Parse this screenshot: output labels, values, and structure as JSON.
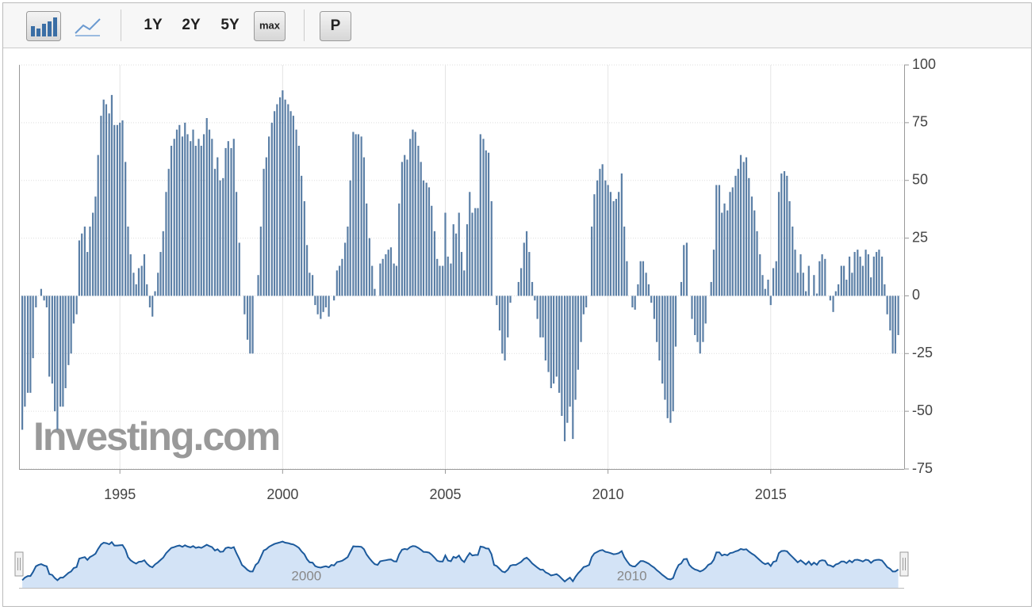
{
  "toolbar": {
    "buttons": [
      "1Y",
      "2Y",
      "5Y",
      "max",
      "P"
    ]
  },
  "chart_data": {
    "type": "bar",
    "color": "#5b7fa6",
    "xlim": [
      1991.9,
      2019.1
    ],
    "xticks": [
      1995,
      2000,
      2005,
      2010,
      2015
    ],
    "ylim": [
      -75,
      100
    ],
    "yticks": [
      -75,
      -50,
      -25,
      0,
      25,
      50,
      75,
      100
    ],
    "grid": true,
    "watermark": "Investing.com",
    "navigator": {
      "xticks": [
        2000,
        2010
      ],
      "color": "#1c5a9c"
    },
    "x": [
      1992,
      1992.08,
      1992.17,
      1992.25,
      1992.33,
      1992.42,
      1992.5,
      1992.58,
      1992.67,
      1992.75,
      1992.83,
      1992.92,
      1993,
      1993.08,
      1993.17,
      1993.25,
      1993.33,
      1993.42,
      1993.5,
      1993.58,
      1993.67,
      1993.75,
      1993.83,
      1993.92,
      1994,
      1994.08,
      1994.17,
      1994.25,
      1994.33,
      1994.42,
      1994.5,
      1994.58,
      1994.67,
      1994.75,
      1994.83,
      1994.92,
      1995,
      1995.08,
      1995.17,
      1995.25,
      1995.33,
      1995.42,
      1995.5,
      1995.58,
      1995.67,
      1995.75,
      1995.83,
      1995.92,
      1996,
      1996.08,
      1996.17,
      1996.25,
      1996.33,
      1996.42,
      1996.5,
      1996.58,
      1996.67,
      1996.75,
      1996.83,
      1996.92,
      1997,
      1997.08,
      1997.17,
      1997.25,
      1997.33,
      1997.42,
      1997.5,
      1997.58,
      1997.67,
      1997.75,
      1997.83,
      1997.92,
      1998,
      1998.08,
      1998.17,
      1998.25,
      1998.33,
      1998.42,
      1998.5,
      1998.58,
      1998.67,
      1998.75,
      1998.83,
      1998.92,
      1999,
      1999.08,
      1999.17,
      1999.25,
      1999.33,
      1999.42,
      1999.5,
      1999.58,
      1999.67,
      1999.75,
      1999.83,
      1999.92,
      2000,
      2000.08,
      2000.17,
      2000.25,
      2000.33,
      2000.42,
      2000.5,
      2000.58,
      2000.67,
      2000.75,
      2000.83,
      2000.92,
      2001,
      2001.08,
      2001.17,
      2001.25,
      2001.33,
      2001.42,
      2001.5,
      2001.58,
      2001.67,
      2001.75,
      2001.83,
      2001.92,
      2002,
      2002.08,
      2002.17,
      2002.25,
      2002.33,
      2002.42,
      2002.5,
      2002.58,
      2002.67,
      2002.75,
      2002.83,
      2002.92,
      2003,
      2003.08,
      2003.17,
      2003.25,
      2003.33,
      2003.42,
      2003.5,
      2003.58,
      2003.67,
      2003.75,
      2003.83,
      2003.92,
      2004,
      2004.08,
      2004.17,
      2004.25,
      2004.33,
      2004.42,
      2004.5,
      2004.58,
      2004.67,
      2004.75,
      2004.83,
      2004.92,
      2005,
      2005.08,
      2005.17,
      2005.25,
      2005.33,
      2005.42,
      2005.5,
      2005.58,
      2005.67,
      2005.75,
      2005.83,
      2005.92,
      2006,
      2006.08,
      2006.17,
      2006.25,
      2006.33,
      2006.42,
      2006.5,
      2006.58,
      2006.67,
      2006.75,
      2006.83,
      2006.92,
      2007,
      2007.08,
      2007.17,
      2007.25,
      2007.33,
      2007.42,
      2007.5,
      2007.58,
      2007.67,
      2007.75,
      2007.83,
      2007.92,
      2008,
      2008.08,
      2008.17,
      2008.25,
      2008.33,
      2008.42,
      2008.5,
      2008.58,
      2008.67,
      2008.75,
      2008.83,
      2008.92,
      2009,
      2009.08,
      2009.17,
      2009.25,
      2009.33,
      2009.42,
      2009.5,
      2009.58,
      2009.67,
      2009.75,
      2009.83,
      2009.92,
      2010,
      2010.08,
      2010.17,
      2010.25,
      2010.33,
      2010.42,
      2010.5,
      2010.58,
      2010.67,
      2010.75,
      2010.83,
      2010.92,
      2011,
      2011.08,
      2011.17,
      2011.25,
      2011.33,
      2011.42,
      2011.5,
      2011.58,
      2011.67,
      2011.75,
      2011.83,
      2011.92,
      2012,
      2012.08,
      2012.17,
      2012.25,
      2012.33,
      2012.42,
      2012.5,
      2012.58,
      2012.67,
      2012.75,
      2012.83,
      2012.92,
      2013,
      2013.08,
      2013.17,
      2013.25,
      2013.33,
      2013.42,
      2013.5,
      2013.58,
      2013.67,
      2013.75,
      2013.83,
      2013.92,
      2014,
      2014.08,
      2014.17,
      2014.25,
      2014.33,
      2014.42,
      2014.5,
      2014.58,
      2014.67,
      2014.75,
      2014.83,
      2014.92,
      2015,
      2015.08,
      2015.17,
      2015.25,
      2015.33,
      2015.42,
      2015.5,
      2015.58,
      2015.67,
      2015.75,
      2015.83,
      2015.92,
      2016,
      2016.08,
      2016.17,
      2016.25,
      2016.33,
      2016.42,
      2016.5,
      2016.58,
      2016.67,
      2016.75,
      2016.83,
      2016.92,
      2017,
      2017.08,
      2017.17,
      2017.25,
      2017.33,
      2017.42,
      2017.5,
      2017.58,
      2017.67,
      2017.75,
      2017.83,
      2017.92,
      2018,
      2018.08,
      2018.17,
      2018.25,
      2018.33,
      2018.42,
      2018.5,
      2018.58,
      2018.67,
      2018.75,
      2018.83,
      2018.92
    ],
    "values": [
      -58,
      -48,
      -42,
      -42,
      -27,
      -5,
      0,
      3,
      -2,
      -5,
      -35,
      -38,
      -50,
      -58,
      -48,
      -48,
      -40,
      -30,
      -25,
      -12,
      -8,
      24,
      27,
      30,
      19,
      30,
      36,
      43,
      61,
      78,
      85,
      83,
      79,
      87,
      74,
      74,
      75,
      76,
      58,
      30,
      18,
      10,
      5,
      12,
      13,
      18,
      5,
      -5,
      -9,
      2,
      10,
      19,
      28,
      45,
      55,
      65,
      68,
      72,
      74,
      69,
      75,
      70,
      67,
      72,
      65,
      68,
      65,
      70,
      77,
      72,
      68,
      55,
      60,
      50,
      51,
      64,
      67,
      64,
      68,
      45,
      23,
      0,
      -8,
      -19,
      -25,
      -25,
      0,
      9,
      30,
      55,
      60,
      69,
      75,
      80,
      83,
      86,
      89,
      85,
      83,
      80,
      78,
      72,
      65,
      52,
      41,
      22,
      10,
      9,
      -4,
      -8,
      -10,
      -7,
      -5,
      -9,
      0,
      -2,
      11,
      13,
      16,
      23,
      30,
      50,
      71,
      70,
      70,
      69,
      60,
      40,
      25,
      13,
      3,
      0,
      14,
      16,
      18,
      20,
      21,
      14,
      13,
      40,
      58,
      61,
      59,
      68,
      72,
      71,
      65,
      58,
      50,
      49,
      47,
      39,
      28,
      16,
      13,
      13,
      36,
      17,
      14,
      31,
      27,
      36,
      19,
      11,
      31,
      45,
      36,
      38,
      38,
      70,
      68,
      63,
      62,
      41,
      0,
      -4,
      -15,
      -25,
      -28,
      -18,
      -3,
      0,
      0,
      6,
      12,
      23,
      28,
      19,
      6,
      -2,
      -10,
      -18,
      -18,
      -28,
      -33,
      -40,
      -38,
      -35,
      -42,
      -52,
      -63,
      -55,
      -48,
      -62,
      -45,
      -32,
      -20,
      -8,
      -5,
      0,
      30,
      44,
      50,
      55,
      57,
      50,
      48,
      45,
      41,
      42,
      45,
      53,
      30,
      15,
      0,
      -5,
      -6,
      5,
      15,
      15,
      10,
      5,
      -3,
      -10,
      -20,
      -28,
      -38,
      -45,
      -53,
      -55,
      -50,
      -22,
      0,
      6,
      22,
      23,
      0,
      -10,
      -17,
      -20,
      -25,
      -20,
      -12,
      0,
      6,
      20,
      48,
      48,
      36,
      40,
      37,
      45,
      47,
      52,
      55,
      61,
      58,
      60,
      51,
      43,
      37,
      28,
      18,
      9,
      3,
      7,
      -4,
      12,
      15,
      45,
      53,
      54,
      52,
      41,
      30,
      20,
      10,
      18,
      10,
      2,
      13,
      0,
      9,
      1,
      15,
      18,
      16,
      0,
      -2,
      -7,
      2,
      5,
      13,
      13,
      7,
      17,
      10,
      19,
      20,
      17,
      13,
      20,
      18,
      8,
      17,
      19,
      20,
      17,
      5,
      -8,
      -15,
      -25,
      -25,
      -17
    ]
  }
}
